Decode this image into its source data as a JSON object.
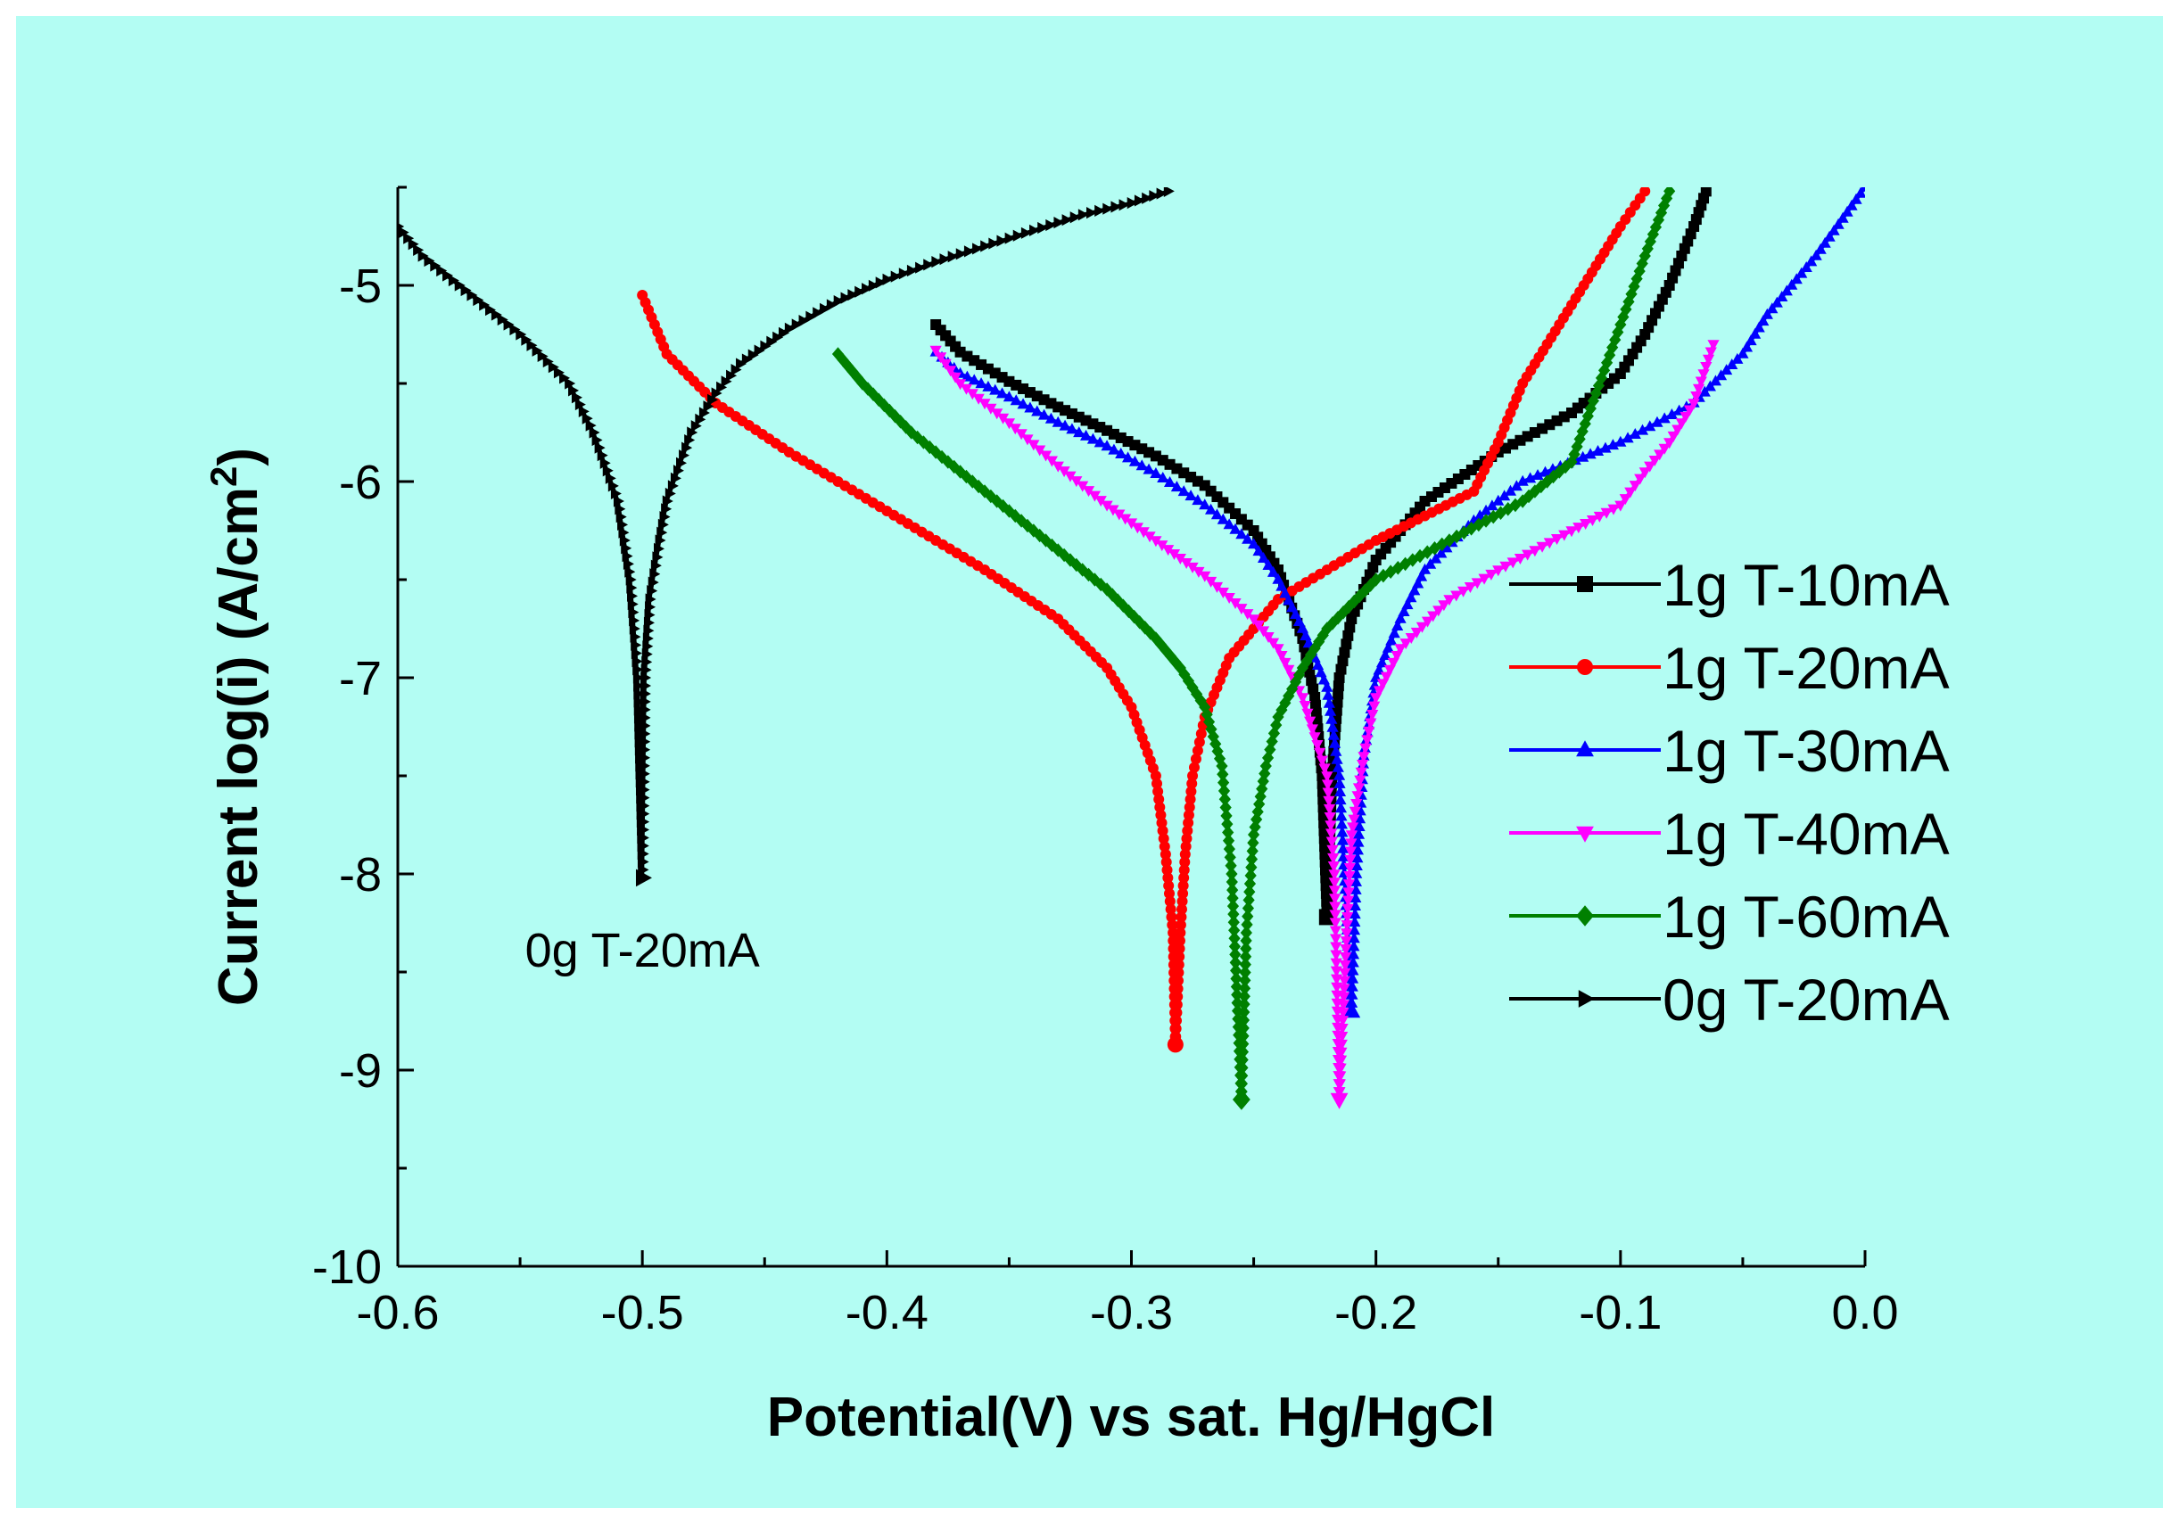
{
  "colors": {
    "background": "#b3fdf3",
    "page": "#ffffff"
  },
  "chart_data": {
    "type": "line",
    "title": "",
    "xlabel": "Potential(V)  vs sat. Hg/HgCl",
    "ylabel_main": "Current log(i)  (A/cm",
    "ylabel_sup": "2",
    "ylabel_end": ")",
    "xlim": [
      -0.6,
      0.0
    ],
    "ylim": [
      -10,
      -4.5
    ],
    "xticks": [
      "-0.6",
      "-0.5",
      "-0.4",
      "-0.3",
      "-0.2",
      "-0.1",
      "0.0"
    ],
    "yticks": [
      "-10",
      "-9",
      "-8",
      "-7",
      "-6",
      "-5"
    ],
    "grid": false,
    "legend_position": "right",
    "annotation": {
      "text": "0g T-20mA",
      "x": -0.5,
      "y": -8.3
    },
    "series": [
      {
        "name": "1g T-10mA",
        "color": "#000000",
        "marker": "square",
        "ecorr": -0.22,
        "icorr": -8.22,
        "cathodic": [
          [
            -0.38,
            -5.2
          ],
          [
            -0.37,
            -5.34
          ],
          [
            -0.35,
            -5.49
          ],
          [
            -0.33,
            -5.62
          ],
          [
            -0.31,
            -5.74
          ],
          [
            -0.29,
            -5.87
          ],
          [
            -0.27,
            -6.02
          ],
          [
            -0.25,
            -6.25
          ],
          [
            -0.24,
            -6.45
          ],
          [
            -0.23,
            -6.8
          ],
          [
            -0.225,
            -7.1
          ],
          [
            -0.222,
            -7.5
          ],
          [
            -0.22,
            -8.22
          ]
        ],
        "anodic": [
          [
            -0.22,
            -8.22
          ],
          [
            -0.218,
            -7.5
          ],
          [
            -0.215,
            -7.0
          ],
          [
            -0.21,
            -6.7
          ],
          [
            -0.2,
            -6.4
          ],
          [
            -0.18,
            -6.1
          ],
          [
            -0.15,
            -5.85
          ],
          [
            -0.12,
            -5.65
          ],
          [
            -0.1,
            -5.45
          ],
          [
            -0.09,
            -5.25
          ],
          [
            -0.08,
            -5.0
          ],
          [
            -0.07,
            -4.7
          ],
          [
            -0.065,
            -4.52
          ]
        ]
      },
      {
        "name": "1g T-20mA",
        "color": "#ff0000",
        "marker": "circle",
        "ecorr": -0.282,
        "icorr": -8.87,
        "cathodic": [
          [
            -0.5,
            -5.05
          ],
          [
            -0.49,
            -5.35
          ],
          [
            -0.47,
            -5.6
          ],
          [
            -0.44,
            -5.85
          ],
          [
            -0.4,
            -6.15
          ],
          [
            -0.36,
            -6.45
          ],
          [
            -0.33,
            -6.7
          ],
          [
            -0.31,
            -6.95
          ],
          [
            -0.3,
            -7.15
          ],
          [
            -0.29,
            -7.5
          ],
          [
            -0.286,
            -7.9
          ],
          [
            -0.283,
            -8.3
          ],
          [
            -0.282,
            -8.87
          ]
        ],
        "anodic": [
          [
            -0.282,
            -8.87
          ],
          [
            -0.28,
            -8.3
          ],
          [
            -0.278,
            -7.9
          ],
          [
            -0.275,
            -7.5
          ],
          [
            -0.27,
            -7.2
          ],
          [
            -0.26,
            -6.9
          ],
          [
            -0.24,
            -6.6
          ],
          [
            -0.2,
            -6.3
          ],
          [
            -0.16,
            -6.05
          ],
          [
            -0.15,
            -5.8
          ],
          [
            -0.14,
            -5.5
          ],
          [
            -0.12,
            -5.1
          ],
          [
            -0.1,
            -4.7
          ],
          [
            -0.09,
            -4.52
          ]
        ]
      },
      {
        "name": "1g T-30mA",
        "color": "#0000ff",
        "marker": "triangle-up",
        "ecorr": -0.21,
        "icorr": -8.7,
        "cathodic": [
          [
            -0.38,
            -5.34
          ],
          [
            -0.37,
            -5.45
          ],
          [
            -0.35,
            -5.57
          ],
          [
            -0.33,
            -5.7
          ],
          [
            -0.31,
            -5.82
          ],
          [
            -0.29,
            -5.96
          ],
          [
            -0.27,
            -6.12
          ],
          [
            -0.25,
            -6.32
          ],
          [
            -0.24,
            -6.5
          ],
          [
            -0.23,
            -6.75
          ],
          [
            -0.22,
            -7.05
          ],
          [
            -0.215,
            -7.5
          ],
          [
            -0.21,
            -8.7
          ]
        ],
        "anodic": [
          [
            -0.21,
            -8.7
          ],
          [
            -0.208,
            -8.0
          ],
          [
            -0.205,
            -7.4
          ],
          [
            -0.2,
            -7.0
          ],
          [
            -0.19,
            -6.7
          ],
          [
            -0.18,
            -6.45
          ],
          [
            -0.16,
            -6.2
          ],
          [
            -0.14,
            -6.0
          ],
          [
            -0.1,
            -5.8
          ],
          [
            -0.07,
            -5.6
          ],
          [
            -0.05,
            -5.35
          ],
          [
            -0.04,
            -5.15
          ],
          [
            -0.02,
            -4.85
          ],
          [
            0.0,
            -4.5
          ]
        ]
      },
      {
        "name": "1g T-40mA",
        "color": "#ff00ff",
        "marker": "triangle-down",
        "ecorr": -0.215,
        "icorr": -9.15,
        "cathodic": [
          [
            -0.38,
            -5.33
          ],
          [
            -0.37,
            -5.5
          ],
          [
            -0.35,
            -5.7
          ],
          [
            -0.33,
            -5.92
          ],
          [
            -0.31,
            -6.12
          ],
          [
            -0.29,
            -6.3
          ],
          [
            -0.27,
            -6.48
          ],
          [
            -0.25,
            -6.7
          ],
          [
            -0.24,
            -6.85
          ],
          [
            -0.23,
            -7.1
          ],
          [
            -0.22,
            -7.5
          ],
          [
            -0.217,
            -8.0
          ],
          [
            -0.215,
            -9.15
          ]
        ],
        "anodic": [
          [
            -0.215,
            -9.15
          ],
          [
            -0.212,
            -8.3
          ],
          [
            -0.21,
            -7.8
          ],
          [
            -0.205,
            -7.4
          ],
          [
            -0.2,
            -7.1
          ],
          [
            -0.19,
            -6.85
          ],
          [
            -0.17,
            -6.6
          ],
          [
            -0.15,
            -6.45
          ],
          [
            -0.12,
            -6.25
          ],
          [
            -0.1,
            -6.12
          ],
          [
            -0.09,
            -5.95
          ],
          [
            -0.08,
            -5.8
          ],
          [
            -0.07,
            -5.6
          ],
          [
            -0.062,
            -5.3
          ]
        ]
      },
      {
        "name": "1g T-60mA",
        "color": "#008000",
        "marker": "diamond",
        "ecorr": -0.255,
        "icorr": -9.15,
        "cathodic": [
          [
            -0.42,
            -5.35
          ],
          [
            -0.41,
            -5.5
          ],
          [
            -0.39,
            -5.75
          ],
          [
            -0.37,
            -5.95
          ],
          [
            -0.35,
            -6.15
          ],
          [
            -0.33,
            -6.35
          ],
          [
            -0.31,
            -6.55
          ],
          [
            -0.29,
            -6.8
          ],
          [
            -0.28,
            -6.95
          ],
          [
            -0.27,
            -7.15
          ],
          [
            -0.263,
            -7.45
          ],
          [
            -0.259,
            -8.0
          ],
          [
            -0.255,
            -9.15
          ]
        ],
        "anodic": [
          [
            -0.255,
            -9.15
          ],
          [
            -0.253,
            -8.3
          ],
          [
            -0.25,
            -7.8
          ],
          [
            -0.245,
            -7.45
          ],
          [
            -0.24,
            -7.2
          ],
          [
            -0.23,
            -6.95
          ],
          [
            -0.22,
            -6.75
          ],
          [
            -0.2,
            -6.5
          ],
          [
            -0.17,
            -6.3
          ],
          [
            -0.14,
            -6.1
          ],
          [
            -0.12,
            -5.9
          ],
          [
            -0.11,
            -5.55
          ],
          [
            -0.1,
            -5.2
          ],
          [
            -0.09,
            -4.85
          ],
          [
            -0.08,
            -4.52
          ]
        ]
      },
      {
        "name": "0g T-20mA",
        "color": "#000000",
        "marker": "triangle-right",
        "ecorr": -0.5,
        "icorr": -8.02,
        "cathodic": [
          [
            -0.6,
            -4.7
          ],
          [
            -0.59,
            -4.85
          ],
          [
            -0.57,
            -5.05
          ],
          [
            -0.55,
            -5.25
          ],
          [
            -0.53,
            -5.5
          ],
          [
            -0.52,
            -5.75
          ],
          [
            -0.51,
            -6.1
          ],
          [
            -0.505,
            -6.5
          ],
          [
            -0.502,
            -7.0
          ],
          [
            -0.5,
            -8.02
          ]
        ],
        "anodic": [
          [
            -0.5,
            -8.02
          ],
          [
            -0.499,
            -7.0
          ],
          [
            -0.497,
            -6.6
          ],
          [
            -0.493,
            -6.3
          ],
          [
            -0.49,
            -6.1
          ],
          [
            -0.48,
            -5.75
          ],
          [
            -0.47,
            -5.55
          ],
          [
            -0.46,
            -5.4
          ],
          [
            -0.44,
            -5.22
          ],
          [
            -0.42,
            -5.08
          ],
          [
            -0.4,
            -4.97
          ],
          [
            -0.38,
            -4.88
          ],
          [
            -0.36,
            -4.8
          ],
          [
            -0.34,
            -4.72
          ],
          [
            -0.32,
            -4.64
          ],
          [
            -0.3,
            -4.58
          ],
          [
            -0.285,
            -4.52
          ]
        ]
      }
    ]
  }
}
